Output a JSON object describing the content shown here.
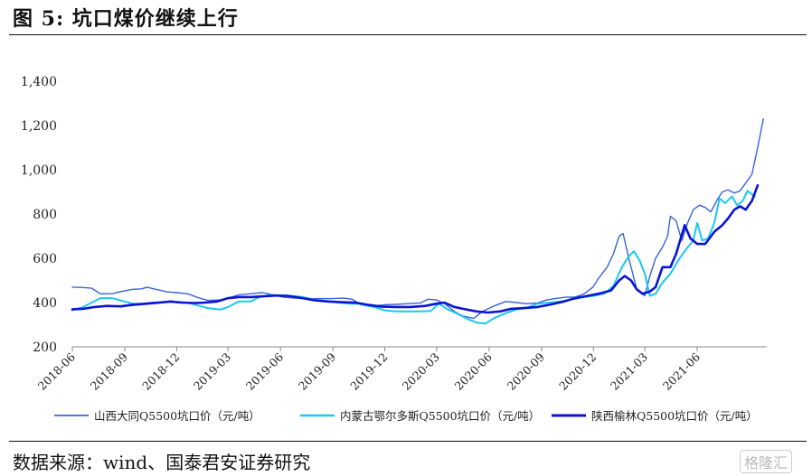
{
  "figure": {
    "title": "图 5: 坑口煤价继续上行",
    "source": "数据来源：wind、国泰君安证券研究",
    "watermark": "格隆汇"
  },
  "chart_data": {
    "type": "line",
    "title": "",
    "xlabel": "",
    "ylabel": "",
    "ylim": [
      200,
      1400
    ],
    "yticks": [
      200,
      400,
      600,
      800,
      1000,
      1200,
      1400
    ],
    "ytick_labels": [
      "200",
      "400",
      "600",
      "800",
      "1,000",
      "1,200",
      "1,400"
    ],
    "xticks": [
      "2018-06",
      "2018-09",
      "2018-12",
      "2019-03",
      "2019-06",
      "2019-09",
      "2019-12",
      "2020-03",
      "2020-06",
      "2020-09",
      "2020-12",
      "2021-03",
      "2021-06"
    ],
    "grid": false,
    "legend_position": "bottom",
    "series": [
      {
        "name": "山西大同Q5500坑口价（元/吨）",
        "color": "#3a63d6",
        "width": 1.4,
        "points": [
          [
            "2018-06-01",
            470
          ],
          [
            "2018-06-20",
            468
          ],
          [
            "2018-07-05",
            465
          ],
          [
            "2018-07-20",
            440
          ],
          [
            "2018-08-10",
            440
          ],
          [
            "2018-08-25",
            450
          ],
          [
            "2018-09-15",
            460
          ],
          [
            "2018-10-01",
            462
          ],
          [
            "2018-10-10",
            470
          ],
          [
            "2018-10-25",
            460
          ],
          [
            "2018-11-15",
            448
          ],
          [
            "2018-12-01",
            445
          ],
          [
            "2018-12-20",
            440
          ],
          [
            "2019-01-10",
            420
          ],
          [
            "2019-01-25",
            410
          ],
          [
            "2019-02-15",
            412
          ],
          [
            "2019-03-01",
            420
          ],
          [
            "2019-03-20",
            435
          ],
          [
            "2019-04-10",
            440
          ],
          [
            "2019-05-01",
            445
          ],
          [
            "2019-05-20",
            435
          ],
          [
            "2019-06-05",
            425
          ],
          [
            "2019-06-25",
            420
          ],
          [
            "2019-07-15",
            418
          ],
          [
            "2019-08-10",
            418
          ],
          [
            "2019-09-01",
            418
          ],
          [
            "2019-09-20",
            420
          ],
          [
            "2019-10-05",
            415
          ],
          [
            "2019-10-20",
            390
          ],
          [
            "2019-11-10",
            385
          ],
          [
            "2019-12-01",
            390
          ],
          [
            "2019-12-20",
            392
          ],
          [
            "2020-01-10",
            395
          ],
          [
            "2020-02-01",
            398
          ],
          [
            "2020-02-15",
            415
          ],
          [
            "2020-03-01",
            412
          ],
          [
            "2020-03-15",
            395
          ],
          [
            "2020-04-01",
            360
          ],
          [
            "2020-04-15",
            340
          ],
          [
            "2020-05-05",
            328
          ],
          [
            "2020-05-20",
            360
          ],
          [
            "2020-06-10",
            385
          ],
          [
            "2020-06-30",
            405
          ],
          [
            "2020-07-20",
            400
          ],
          [
            "2020-08-05",
            395
          ],
          [
            "2020-08-25",
            398
          ],
          [
            "2020-09-10",
            412
          ],
          [
            "2020-09-30",
            420
          ],
          [
            "2020-10-15",
            425
          ],
          [
            "2020-10-30",
            425
          ],
          [
            "2020-11-15",
            440
          ],
          [
            "2020-11-30",
            470
          ],
          [
            "2020-12-10",
            510
          ],
          [
            "2020-12-25",
            560
          ],
          [
            "2021-01-05",
            620
          ],
          [
            "2021-01-15",
            700
          ],
          [
            "2021-01-22",
            712
          ],
          [
            "2021-02-01",
            600
          ],
          [
            "2021-02-15",
            460
          ],
          [
            "2021-03-01",
            430
          ],
          [
            "2021-03-10",
            520
          ],
          [
            "2021-03-20",
            600
          ],
          [
            "2021-04-01",
            650
          ],
          [
            "2021-04-10",
            700
          ],
          [
            "2021-04-15",
            790
          ],
          [
            "2021-04-25",
            770
          ],
          [
            "2021-05-05",
            680
          ],
          [
            "2021-05-15",
            760
          ],
          [
            "2021-05-25",
            820
          ],
          [
            "2021-06-05",
            840
          ],
          [
            "2021-06-15",
            830
          ],
          [
            "2021-06-25",
            810
          ],
          [
            "2021-07-05",
            860
          ],
          [
            "2021-07-15",
            900
          ],
          [
            "2021-07-25",
            910
          ],
          [
            "2021-08-05",
            895
          ],
          [
            "2021-08-15",
            905
          ],
          [
            "2021-08-25",
            940
          ],
          [
            "2021-09-05",
            980
          ],
          [
            "2021-09-15",
            1100
          ],
          [
            "2021-09-25",
            1230
          ]
        ]
      },
      {
        "name": "内蒙古鄂尔多斯Q5500坑口价（元/吨）",
        "color": "#1cc8f0",
        "width": 2.0,
        "points": [
          [
            "2018-06-01",
            365
          ],
          [
            "2018-06-20",
            380
          ],
          [
            "2018-07-05",
            400
          ],
          [
            "2018-07-20",
            420
          ],
          [
            "2018-08-10",
            420
          ],
          [
            "2018-08-25",
            410
          ],
          [
            "2018-09-15",
            395
          ],
          [
            "2018-10-01",
            395
          ],
          [
            "2018-10-20",
            400
          ],
          [
            "2018-11-10",
            403
          ],
          [
            "2018-12-01",
            402
          ],
          [
            "2018-12-20",
            400
          ],
          [
            "2019-01-10",
            385
          ],
          [
            "2019-01-25",
            375
          ],
          [
            "2019-02-15",
            368
          ],
          [
            "2019-03-01",
            380
          ],
          [
            "2019-03-20",
            405
          ],
          [
            "2019-04-10",
            405
          ],
          [
            "2019-04-25",
            425
          ],
          [
            "2019-05-15",
            435
          ],
          [
            "2019-06-01",
            432
          ],
          [
            "2019-06-20",
            430
          ],
          [
            "2019-07-10",
            425
          ],
          [
            "2019-08-01",
            412
          ],
          [
            "2019-08-20",
            405
          ],
          [
            "2019-09-10",
            400
          ],
          [
            "2019-09-30",
            395
          ],
          [
            "2019-10-15",
            395
          ],
          [
            "2019-11-01",
            385
          ],
          [
            "2019-11-15",
            378
          ],
          [
            "2019-12-01",
            365
          ],
          [
            "2019-12-20",
            360
          ],
          [
            "2020-01-10",
            360
          ],
          [
            "2020-02-01",
            360
          ],
          [
            "2020-02-20",
            362
          ],
          [
            "2020-03-05",
            395
          ],
          [
            "2020-03-20",
            370
          ],
          [
            "2020-04-10",
            345
          ],
          [
            "2020-04-25",
            325
          ],
          [
            "2020-05-10",
            310
          ],
          [
            "2020-05-25",
            305
          ],
          [
            "2020-06-10",
            330
          ],
          [
            "2020-06-30",
            352
          ],
          [
            "2020-07-20",
            370
          ],
          [
            "2020-08-05",
            375
          ],
          [
            "2020-08-25",
            395
          ],
          [
            "2020-09-15",
            400
          ],
          [
            "2020-10-05",
            405
          ],
          [
            "2020-10-25",
            415
          ],
          [
            "2020-11-15",
            425
          ],
          [
            "2020-12-01",
            430
          ],
          [
            "2020-12-20",
            440
          ],
          [
            "2021-01-05",
            475
          ],
          [
            "2021-01-20",
            560
          ],
          [
            "2021-02-01",
            610
          ],
          [
            "2021-02-10",
            632
          ],
          [
            "2021-02-20",
            590
          ],
          [
            "2021-03-01",
            530
          ],
          [
            "2021-03-10",
            430
          ],
          [
            "2021-03-20",
            440
          ],
          [
            "2021-04-01",
            490
          ],
          [
            "2021-04-15",
            530
          ],
          [
            "2021-05-01",
            600
          ],
          [
            "2021-05-15",
            650
          ],
          [
            "2021-05-25",
            680
          ],
          [
            "2021-06-01",
            760
          ],
          [
            "2021-06-10",
            680
          ],
          [
            "2021-06-20",
            690
          ],
          [
            "2021-07-01",
            760
          ],
          [
            "2021-07-10",
            870
          ],
          [
            "2021-07-20",
            850
          ],
          [
            "2021-08-01",
            880
          ],
          [
            "2021-08-10",
            840
          ],
          [
            "2021-08-20",
            860
          ],
          [
            "2021-08-28",
            905
          ],
          [
            "2021-09-10",
            880
          ]
        ]
      },
      {
        "name": "陕西榆林Q5500坑口价（元/吨）",
        "color": "#0a14d2",
        "width": 2.6,
        "points": [
          [
            "2018-06-01",
            370
          ],
          [
            "2018-06-20",
            372
          ],
          [
            "2018-07-10",
            380
          ],
          [
            "2018-08-01",
            385
          ],
          [
            "2018-08-25",
            383
          ],
          [
            "2018-09-15",
            390
          ],
          [
            "2018-10-10",
            395
          ],
          [
            "2018-11-01",
            400
          ],
          [
            "2018-11-20",
            405
          ],
          [
            "2018-12-10",
            400
          ],
          [
            "2019-01-01",
            398
          ],
          [
            "2019-01-20",
            400
          ],
          [
            "2019-02-10",
            405
          ],
          [
            "2019-03-01",
            420
          ],
          [
            "2019-03-20",
            425
          ],
          [
            "2019-04-10",
            425
          ],
          [
            "2019-05-01",
            428
          ],
          [
            "2019-05-25",
            432
          ],
          [
            "2019-06-15",
            430
          ],
          [
            "2019-07-10",
            420
          ],
          [
            "2019-08-01",
            410
          ],
          [
            "2019-08-25",
            405
          ],
          [
            "2019-09-15",
            402
          ],
          [
            "2019-10-10",
            400
          ],
          [
            "2019-11-01",
            390
          ],
          [
            "2019-11-25",
            382
          ],
          [
            "2019-12-20",
            380
          ],
          [
            "2020-01-15",
            380
          ],
          [
            "2020-02-10",
            385
          ],
          [
            "2020-03-01",
            395
          ],
          [
            "2020-03-15",
            400
          ],
          [
            "2020-04-01",
            380
          ],
          [
            "2020-04-20",
            370
          ],
          [
            "2020-05-10",
            360
          ],
          [
            "2020-05-30",
            355
          ],
          [
            "2020-06-20",
            360
          ],
          [
            "2020-07-10",
            372
          ],
          [
            "2020-08-01",
            375
          ],
          [
            "2020-08-25",
            380
          ],
          [
            "2020-09-15",
            390
          ],
          [
            "2020-10-10",
            405
          ],
          [
            "2020-10-30",
            420
          ],
          [
            "2020-11-20",
            430
          ],
          [
            "2020-12-10",
            440
          ],
          [
            "2021-01-01",
            455
          ],
          [
            "2021-01-15",
            500
          ],
          [
            "2021-01-25",
            520
          ],
          [
            "2021-02-05",
            500
          ],
          [
            "2021-02-15",
            460
          ],
          [
            "2021-02-25",
            440
          ],
          [
            "2021-03-10",
            450
          ],
          [
            "2021-03-20",
            470
          ],
          [
            "2021-04-01",
            560
          ],
          [
            "2021-04-15",
            560
          ],
          [
            "2021-04-25",
            620
          ],
          [
            "2021-05-10",
            750
          ],
          [
            "2021-05-20",
            690
          ],
          [
            "2021-06-01",
            665
          ],
          [
            "2021-06-15",
            665
          ],
          [
            "2021-07-01",
            720
          ],
          [
            "2021-07-15",
            750
          ],
          [
            "2021-07-25",
            780
          ],
          [
            "2021-08-05",
            820
          ],
          [
            "2021-08-15",
            835
          ],
          [
            "2021-08-25",
            820
          ],
          [
            "2021-09-05",
            860
          ],
          [
            "2021-09-15",
            930
          ]
        ]
      }
    ]
  }
}
